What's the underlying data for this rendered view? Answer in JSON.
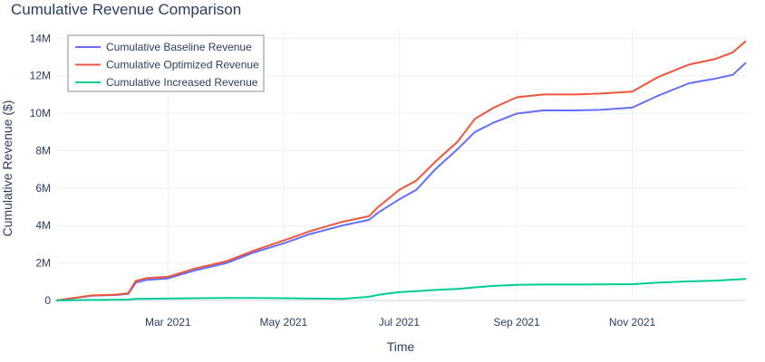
{
  "chart_data": {
    "type": "line",
    "title": "Cumulative Revenue Comparison",
    "xlabel": "Time",
    "ylabel": "Cumulative Revenue ($)",
    "xlim": [
      "2021-01-01",
      "2021-12-31"
    ],
    "ylim": [
      0,
      14500000
    ],
    "x_ticks": [
      {
        "date": "2021-03-01",
        "label": "Mar 2021"
      },
      {
        "date": "2021-05-01",
        "label": "May 2021"
      },
      {
        "date": "2021-07-01",
        "label": "Jul 2021"
      },
      {
        "date": "2021-09-01",
        "label": "Sep 2021"
      },
      {
        "date": "2021-11-01",
        "label": "Nov 2021"
      }
    ],
    "y_ticks": [
      {
        "value": 0,
        "label": "0"
      },
      {
        "value": 2000000,
        "label": "2M"
      },
      {
        "value": 4000000,
        "label": "4M"
      },
      {
        "value": 6000000,
        "label": "6M"
      },
      {
        "value": 8000000,
        "label": "8M"
      },
      {
        "value": 10000000,
        "label": "10M"
      },
      {
        "value": 12000000,
        "label": "12M"
      },
      {
        "value": 14000000,
        "label": "14M"
      }
    ],
    "grid": true,
    "legend_position": "top-left",
    "x": [
      "2021-01-01",
      "2021-01-20",
      "2021-02-01",
      "2021-02-08",
      "2021-02-12",
      "2021-02-18",
      "2021-03-01",
      "2021-03-15",
      "2021-04-01",
      "2021-04-15",
      "2021-05-01",
      "2021-05-15",
      "2021-06-01",
      "2021-06-15",
      "2021-06-20",
      "2021-07-01",
      "2021-07-10",
      "2021-07-20",
      "2021-08-01",
      "2021-08-10",
      "2021-08-20",
      "2021-09-01",
      "2021-09-15",
      "2021-10-01",
      "2021-10-15",
      "2021-11-01",
      "2021-11-15",
      "2021-12-01",
      "2021-12-15",
      "2021-12-24",
      "2021-12-31"
    ],
    "series": [
      {
        "name": "Cumulative Baseline Revenue",
        "color": "#636efa",
        "values": [
          0,
          250000,
          290000,
          350000,
          950000,
          1100000,
          1180000,
          1600000,
          2000000,
          2550000,
          3050000,
          3550000,
          4000000,
          4300000,
          4700000,
          5400000,
          5900000,
          7000000,
          8100000,
          9000000,
          9500000,
          9980000,
          10150000,
          10150000,
          10180000,
          10300000,
          10950000,
          11600000,
          11850000,
          12050000,
          12700000
        ]
      },
      {
        "name": "Cumulative Optimized Revenue",
        "color": "#ef553b",
        "values": [
          0,
          270000,
          310000,
          380000,
          1050000,
          1200000,
          1260000,
          1700000,
          2100000,
          2650000,
          3200000,
          3700000,
          4200000,
          4500000,
          5000000,
          5900000,
          6400000,
          7400000,
          8500000,
          9700000,
          10300000,
          10850000,
          11000000,
          11000000,
          11050000,
          11150000,
          11950000,
          12600000,
          12900000,
          13250000,
          13850000
        ]
      },
      {
        "name": "Cumulative Increased Revenue",
        "color": "#00cc96",
        "values": [
          0,
          30000,
          40000,
          50000,
          80000,
          90000,
          100000,
          120000,
          130000,
          130000,
          120000,
          100000,
          80000,
          200000,
          300000,
          450000,
          500000,
          560000,
          620000,
          700000,
          780000,
          830000,
          850000,
          850000,
          860000,
          870000,
          950000,
          1020000,
          1060000,
          1110000,
          1150000
        ]
      }
    ]
  }
}
